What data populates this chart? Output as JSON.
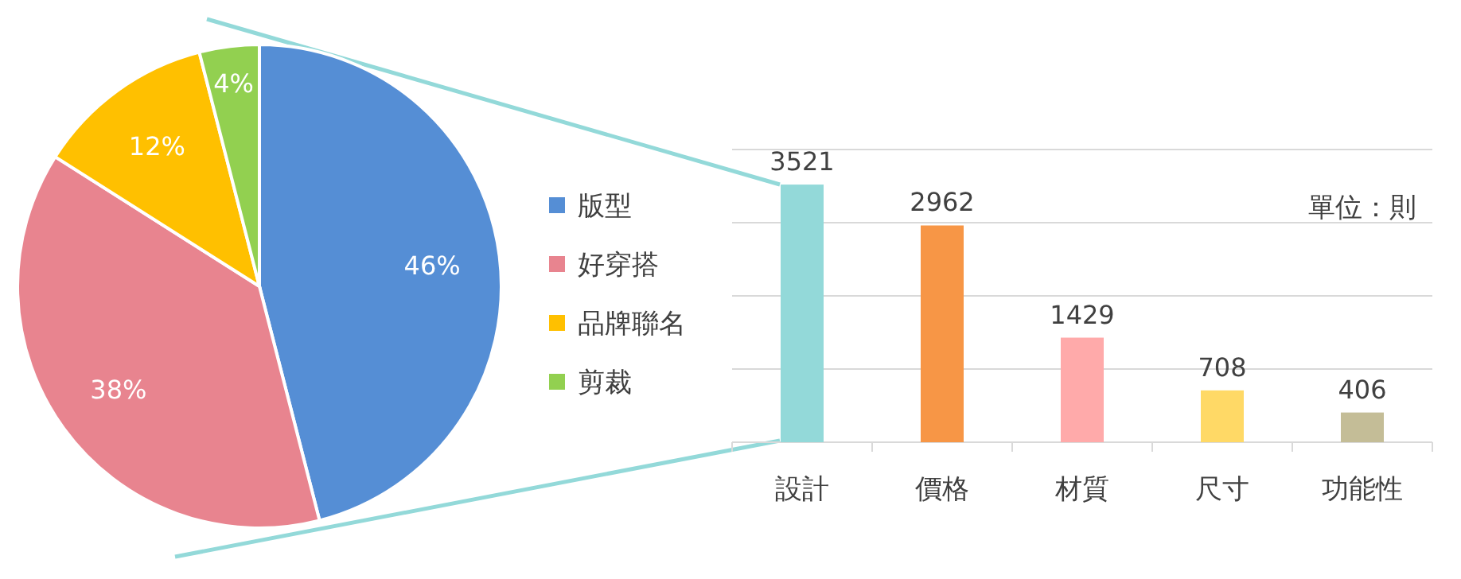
{
  "chart_data": [
    {
      "type": "pie",
      "categories": [
        "版型",
        "好穿搭",
        "品牌聯名",
        "剪裁"
      ],
      "values": [
        46,
        38,
        12,
        4
      ],
      "colors": [
        "#558ed5",
        "#e8848f",
        "#ffc000",
        "#92d050"
      ],
      "value_labels": [
        "46%",
        "38%",
        "12%",
        "4%"
      ],
      "legend": "right"
    },
    {
      "type": "bar",
      "categories": [
        "設計",
        "價格",
        "材質",
        "尺寸",
        "功能性"
      ],
      "values": [
        3521,
        2962,
        1429,
        708,
        406
      ],
      "colors": [
        "#93d9d9",
        "#f79646",
        "#ffaaaa",
        "#ffd966",
        "#c4bd97"
      ],
      "data_labels": true,
      "ylim": [
        0,
        4000
      ],
      "yticks": [
        {
          "value": 0,
          "label": null
        },
        {
          "value": 1000,
          "label": null
        },
        {
          "value": 2000,
          "label": null
        },
        {
          "value": 3000,
          "label": null
        },
        {
          "value": 4000,
          "label": null
        }
      ],
      "grid": "y",
      "tick_labels": "x",
      "annotations": [
        "單位：則"
      ]
    }
  ]
}
